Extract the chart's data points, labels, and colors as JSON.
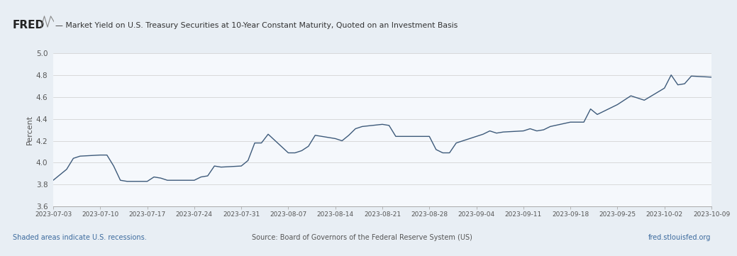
{
  "title": "— Market Yield on U.S. Treasury Securities at 10-Year Constant Maturity, Quoted on an Investment Basis",
  "ylabel": "Percent",
  "xlim_start": "2023-07-03",
  "xlim_end": "2023-10-09",
  "ylim": [
    3.6,
    5.0
  ],
  "yticks": [
    3.6,
    3.8,
    4.0,
    4.2,
    4.4,
    4.6,
    4.8,
    5.0
  ],
  "line_color": "#3d5a7a",
  "bg_color": "#e8eef4",
  "plot_bg_color": "#f5f8fc",
  "footer_left": "Shaded areas indicate U.S. recessions.",
  "footer_center": "Source: Board of Governors of the Federal Reserve System (US)",
  "footer_right": "fred.stlouisfed.org",
  "fred_text": "FRED",
  "xtick_labels": [
    "2023-07-03",
    "2023-07-10",
    "2023-07-17",
    "2023-07-24",
    "2023-07-31",
    "2023-08-07",
    "2023-08-14",
    "2023-08-21",
    "2023-08-28",
    "2023-09-04",
    "2023-09-11",
    "2023-09-18",
    "2023-09-25",
    "2023-10-02",
    "2023-10-09"
  ],
  "dates": [
    "2023-07-03",
    "2023-07-05",
    "2023-07-06",
    "2023-07-07",
    "2023-07-10",
    "2023-07-11",
    "2023-07-12",
    "2023-07-13",
    "2023-07-14",
    "2023-07-17",
    "2023-07-18",
    "2023-07-19",
    "2023-07-20",
    "2023-07-21",
    "2023-07-24",
    "2023-07-25",
    "2023-07-26",
    "2023-07-27",
    "2023-07-28",
    "2023-07-31",
    "2023-08-01",
    "2023-08-02",
    "2023-08-03",
    "2023-08-04",
    "2023-08-07",
    "2023-08-08",
    "2023-08-09",
    "2023-08-10",
    "2023-08-11",
    "2023-08-14",
    "2023-08-15",
    "2023-08-16",
    "2023-08-17",
    "2023-08-18",
    "2023-08-21",
    "2023-08-22",
    "2023-08-23",
    "2023-08-24",
    "2023-08-25",
    "2023-08-28",
    "2023-08-29",
    "2023-08-30",
    "2023-08-31",
    "2023-09-01",
    "2023-09-05",
    "2023-09-06",
    "2023-09-07",
    "2023-09-08",
    "2023-09-11",
    "2023-09-12",
    "2023-09-13",
    "2023-09-14",
    "2023-09-15",
    "2023-09-18",
    "2023-09-19",
    "2023-09-20",
    "2023-09-21",
    "2023-09-22",
    "2023-09-25",
    "2023-09-26",
    "2023-09-27",
    "2023-09-28",
    "2023-09-29",
    "2023-10-02",
    "2023-10-03",
    "2023-10-04",
    "2023-10-05",
    "2023-10-06",
    "2023-10-09"
  ],
  "values": [
    3.84,
    3.94,
    4.04,
    4.06,
    4.07,
    4.07,
    3.97,
    3.84,
    3.83,
    3.83,
    3.87,
    3.86,
    3.84,
    3.84,
    3.84,
    3.87,
    3.88,
    3.97,
    3.96,
    3.97,
    4.02,
    4.18,
    4.18,
    4.26,
    4.09,
    4.09,
    4.11,
    4.15,
    4.25,
    4.22,
    4.2,
    4.25,
    4.31,
    4.33,
    4.35,
    4.34,
    4.24,
    4.24,
    4.24,
    4.24,
    4.12,
    4.09,
    4.09,
    4.18,
    4.26,
    4.29,
    4.27,
    4.28,
    4.29,
    4.31,
    4.29,
    4.3,
    4.33,
    4.37,
    4.37,
    4.37,
    4.49,
    4.44,
    4.53,
    4.57,
    4.61,
    4.59,
    4.57,
    4.68,
    4.8,
    4.71,
    4.72,
    4.79,
    4.78
  ]
}
